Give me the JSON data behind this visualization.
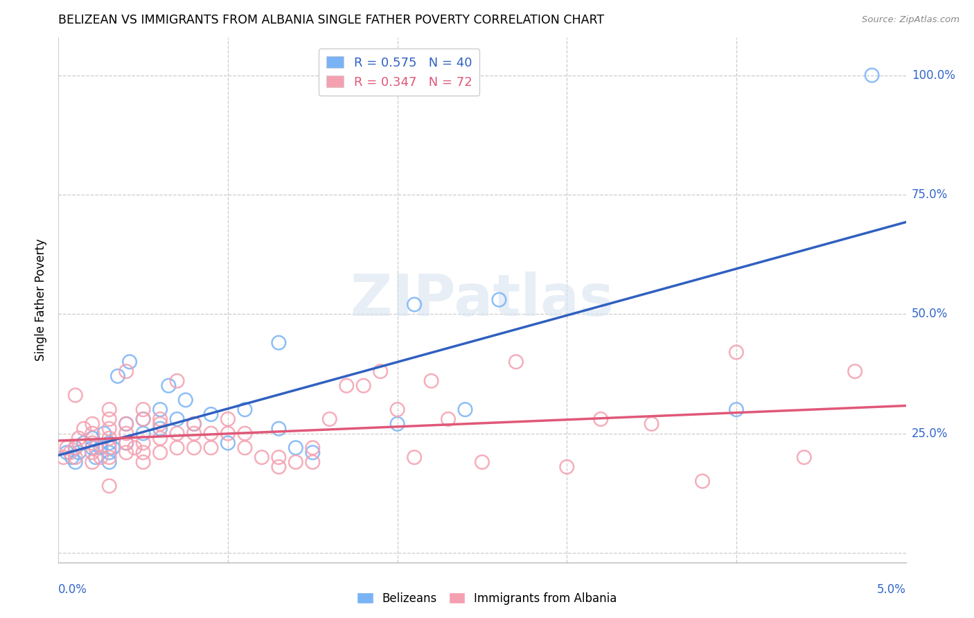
{
  "title": "BELIZEAN VS IMMIGRANTS FROM ALBANIA SINGLE FATHER POVERTY CORRELATION CHART",
  "source": "Source: ZipAtlas.com",
  "ylabel": "Single Father Poverty",
  "xmin": 0.0,
  "xmax": 0.05,
  "ymin": -0.02,
  "ymax": 1.08,
  "legend_line1": "R = 0.575   N = 40",
  "legend_line2": "R = 0.347   N = 72",
  "belizean_color": "#7ab3f5",
  "albania_color": "#f4a0b0",
  "trendline_blue": "#3060c0",
  "trendline_pink": "#e05878",
  "watermark": "ZIPatlas",
  "belizean_x": [
    0.0005,
    0.0008,
    0.001,
    0.001,
    0.0012,
    0.0015,
    0.002,
    0.002,
    0.0022,
    0.0025,
    0.0027,
    0.003,
    0.003,
    0.003,
    0.0032,
    0.0035,
    0.004,
    0.004,
    0.0042,
    0.005,
    0.005,
    0.006,
    0.006,
    0.0065,
    0.007,
    0.0075,
    0.008,
    0.009,
    0.01,
    0.011,
    0.013,
    0.013,
    0.014,
    0.015,
    0.02,
    0.021,
    0.024,
    0.026,
    0.04,
    0.048
  ],
  "belizean_y": [
    0.21,
    0.2,
    0.22,
    0.19,
    0.21,
    0.23,
    0.22,
    0.24,
    0.2,
    0.22,
    0.25,
    0.19,
    0.21,
    0.23,
    0.22,
    0.37,
    0.23,
    0.27,
    0.4,
    0.25,
    0.28,
    0.26,
    0.3,
    0.35,
    0.28,
    0.32,
    0.27,
    0.29,
    0.23,
    0.3,
    0.26,
    0.44,
    0.22,
    0.21,
    0.27,
    0.52,
    0.3,
    0.53,
    0.3,
    1.0
  ],
  "albania_x": [
    0.0003,
    0.0005,
    0.0007,
    0.001,
    0.001,
    0.001,
    0.0012,
    0.0015,
    0.002,
    0.002,
    0.002,
    0.002,
    0.002,
    0.0022,
    0.0025,
    0.003,
    0.003,
    0.003,
    0.003,
    0.003,
    0.003,
    0.003,
    0.004,
    0.004,
    0.004,
    0.004,
    0.004,
    0.0045,
    0.005,
    0.005,
    0.005,
    0.005,
    0.005,
    0.006,
    0.006,
    0.006,
    0.006,
    0.007,
    0.007,
    0.007,
    0.008,
    0.008,
    0.008,
    0.009,
    0.009,
    0.01,
    0.01,
    0.011,
    0.011,
    0.012,
    0.013,
    0.013,
    0.014,
    0.015,
    0.015,
    0.016,
    0.017,
    0.018,
    0.019,
    0.02,
    0.021,
    0.022,
    0.023,
    0.025,
    0.027,
    0.03,
    0.032,
    0.035,
    0.038,
    0.04,
    0.044,
    0.047
  ],
  "albania_y": [
    0.2,
    0.22,
    0.21,
    0.2,
    0.22,
    0.33,
    0.24,
    0.26,
    0.19,
    0.21,
    0.23,
    0.25,
    0.27,
    0.22,
    0.2,
    0.14,
    0.2,
    0.22,
    0.24,
    0.26,
    0.28,
    0.3,
    0.21,
    0.23,
    0.25,
    0.27,
    0.38,
    0.22,
    0.19,
    0.21,
    0.23,
    0.28,
    0.3,
    0.21,
    0.24,
    0.27,
    0.28,
    0.22,
    0.25,
    0.36,
    0.22,
    0.25,
    0.27,
    0.22,
    0.25,
    0.25,
    0.28,
    0.22,
    0.25,
    0.2,
    0.18,
    0.2,
    0.19,
    0.19,
    0.22,
    0.28,
    0.35,
    0.35,
    0.38,
    0.3,
    0.2,
    0.36,
    0.28,
    0.19,
    0.4,
    0.18,
    0.28,
    0.27,
    0.15,
    0.42,
    0.2,
    0.38
  ]
}
